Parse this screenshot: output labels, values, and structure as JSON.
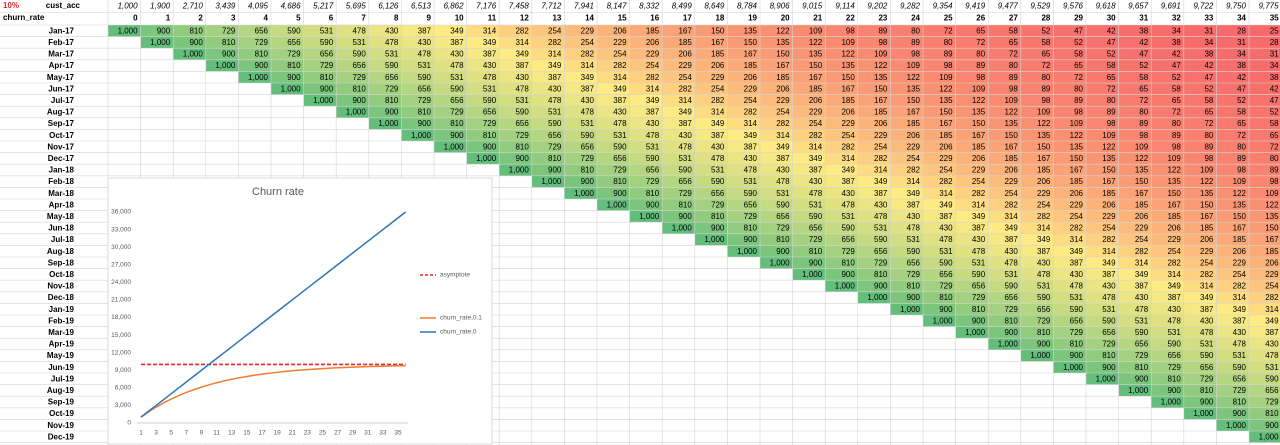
{
  "sheet": {
    "rate": "10%",
    "cust_acc_label": "cust_acc",
    "churn_rate_label": "churn_rate",
    "cust_acc": [
      "1,000",
      "1,900",
      "2,710",
      "3,439",
      "4,095",
      "4,686",
      "5,217",
      "5,695",
      "6,126",
      "6,513",
      "6,862",
      "7,176",
      "7,458",
      "7,712",
      "7,941",
      "8,147",
      "8,332",
      "8,499",
      "8,649",
      "8,784",
      "8,906",
      "9,015",
      "9,114",
      "9,202",
      "9,282",
      "9,354",
      "9,419",
      "9,477",
      "9,529",
      "9,576",
      "9,618",
      "9,657",
      "9,691",
      "9,722",
      "9,750",
      "9,775"
    ],
    "columns": [
      "0",
      "1",
      "2",
      "3",
      "4",
      "5",
      "6",
      "7",
      "8",
      "9",
      "10",
      "11",
      "12",
      "13",
      "14",
      "15",
      "16",
      "17",
      "18",
      "19",
      "20",
      "21",
      "22",
      "23",
      "24",
      "25",
      "26",
      "27",
      "28",
      "29",
      "30",
      "31",
      "32",
      "33",
      "34",
      "35"
    ],
    "rows": [
      {
        "label": "Jan-17",
        "values": [
          "1,000",
          "900",
          "810",
          "729",
          "656",
          "590",
          "531",
          "478",
          "430",
          "387",
          "349",
          "314",
          "282",
          "254",
          "229",
          "206",
          "185",
          "167",
          "150",
          "135",
          "122",
          "109",
          "98",
          "89",
          "80",
          "72",
          "65",
          "58",
          "52",
          "47",
          "42",
          "38",
          "34",
          "31",
          "28",
          "25"
        ]
      },
      {
        "label": "Feb-17",
        "values": [
          "1,000",
          "900",
          "810",
          "729",
          "656",
          "590",
          "531",
          "478",
          "430",
          "387",
          "349",
          "314",
          "282",
          "254",
          "229",
          "206",
          "185",
          "167",
          "150",
          "135",
          "122",
          "109",
          "98",
          "89",
          "80",
          "72",
          "65",
          "58",
          "52",
          "47",
          "42",
          "38",
          "34",
          "31",
          "28"
        ]
      },
      {
        "label": "Mar-17",
        "values": [
          "1,000",
          "900",
          "810",
          "729",
          "656",
          "590",
          "531",
          "478",
          "430",
          "387",
          "349",
          "314",
          "282",
          "254",
          "229",
          "206",
          "185",
          "167",
          "150",
          "135",
          "122",
          "109",
          "98",
          "89",
          "80",
          "72",
          "65",
          "58",
          "52",
          "47",
          "42",
          "38",
          "34",
          "31"
        ]
      },
      {
        "label": "Apr-17",
        "values": [
          "1,000",
          "900",
          "810",
          "729",
          "656",
          "590",
          "531",
          "478",
          "430",
          "387",
          "349",
          "314",
          "282",
          "254",
          "229",
          "206",
          "185",
          "167",
          "150",
          "135",
          "122",
          "109",
          "98",
          "89",
          "80",
          "72",
          "65",
          "58",
          "52",
          "47",
          "42",
          "38",
          "34"
        ]
      },
      {
        "label": "May-17",
        "values": [
          "1,000",
          "900",
          "810",
          "729",
          "656",
          "590",
          "531",
          "478",
          "430",
          "387",
          "349",
          "314",
          "282",
          "254",
          "229",
          "206",
          "185",
          "167",
          "150",
          "135",
          "122",
          "109",
          "98",
          "89",
          "80",
          "72",
          "65",
          "58",
          "52",
          "47",
          "42",
          "38"
        ]
      },
      {
        "label": "Jun-17",
        "values": [
          "1,000",
          "900",
          "810",
          "729",
          "656",
          "590",
          "531",
          "478",
          "430",
          "387",
          "349",
          "314",
          "282",
          "254",
          "229",
          "206",
          "185",
          "167",
          "150",
          "135",
          "122",
          "109",
          "98",
          "89",
          "80",
          "72",
          "65",
          "58",
          "52",
          "47",
          "42"
        ]
      },
      {
        "label": "Jul-17",
        "values": [
          "1,000",
          "900",
          "810",
          "729",
          "656",
          "590",
          "531",
          "478",
          "430",
          "387",
          "349",
          "314",
          "282",
          "254",
          "229",
          "206",
          "185",
          "167",
          "150",
          "135",
          "122",
          "109",
          "98",
          "89",
          "80",
          "72",
          "65",
          "58",
          "52",
          "47"
        ]
      },
      {
        "label": "Aug-17",
        "values": [
          "1,000",
          "900",
          "810",
          "729",
          "656",
          "590",
          "531",
          "478",
          "430",
          "387",
          "349",
          "314",
          "282",
          "254",
          "229",
          "206",
          "185",
          "167",
          "150",
          "135",
          "122",
          "109",
          "98",
          "89",
          "80",
          "72",
          "65",
          "58",
          "52"
        ]
      },
      {
        "label": "Sep-17",
        "values": [
          "1,000",
          "900",
          "810",
          "729",
          "656",
          "590",
          "531",
          "478",
          "430",
          "387",
          "349",
          "314",
          "282",
          "254",
          "229",
          "206",
          "185",
          "167",
          "150",
          "135",
          "122",
          "109",
          "98",
          "89",
          "80",
          "72",
          "65",
          "58"
        ]
      },
      {
        "label": "Oct-17",
        "values": [
          "1,000",
          "900",
          "810",
          "729",
          "656",
          "590",
          "531",
          "478",
          "430",
          "387",
          "349",
          "314",
          "282",
          "254",
          "229",
          "206",
          "185",
          "167",
          "150",
          "135",
          "122",
          "109",
          "98",
          "89",
          "80",
          "72",
          "65"
        ]
      },
      {
        "label": "Nov-17",
        "values": [
          "1,000",
          "900",
          "810",
          "729",
          "656",
          "590",
          "531",
          "478",
          "430",
          "387",
          "349",
          "314",
          "282",
          "254",
          "229",
          "206",
          "185",
          "167",
          "150",
          "135",
          "122",
          "109",
          "98",
          "89",
          "80",
          "72"
        ]
      },
      {
        "label": "Dec-17",
        "values": [
          "1,000",
          "900",
          "810",
          "729",
          "656",
          "590",
          "531",
          "478",
          "430",
          "387",
          "349",
          "314",
          "282",
          "254",
          "229",
          "206",
          "185",
          "167",
          "150",
          "135",
          "122",
          "109",
          "98",
          "89",
          "80"
        ]
      },
      {
        "label": "Jan-18",
        "values": [
          "1,000",
          "900",
          "810",
          "729",
          "656",
          "590",
          "531",
          "478",
          "430",
          "387",
          "349",
          "314",
          "282",
          "254",
          "229",
          "206",
          "185",
          "167",
          "150",
          "135",
          "122",
          "109",
          "98",
          "89"
        ]
      },
      {
        "label": "Feb-18",
        "values": [
          "1,000",
          "900",
          "810",
          "729",
          "656",
          "590",
          "531",
          "478",
          "430",
          "387",
          "349",
          "314",
          "282",
          "254",
          "229",
          "206",
          "185",
          "167",
          "150",
          "135",
          "122",
          "109",
          "98"
        ]
      },
      {
        "label": "Mar-18",
        "values": [
          "1,000",
          "900",
          "810",
          "729",
          "656",
          "590",
          "531",
          "478",
          "430",
          "387",
          "349",
          "314",
          "282",
          "254",
          "229",
          "206",
          "185",
          "167",
          "150",
          "135",
          "122",
          "109"
        ]
      },
      {
        "label": "Apr-18",
        "values": [
          "1,000",
          "900",
          "810",
          "729",
          "656",
          "590",
          "531",
          "478",
          "430",
          "387",
          "349",
          "314",
          "282",
          "254",
          "229",
          "206",
          "185",
          "167",
          "150",
          "135",
          "122"
        ]
      },
      {
        "label": "May-18",
        "values": [
          "1,000",
          "900",
          "810",
          "729",
          "656",
          "590",
          "531",
          "478",
          "430",
          "387",
          "349",
          "314",
          "282",
          "254",
          "229",
          "206",
          "185",
          "167",
          "150",
          "135"
        ]
      },
      {
        "label": "Jun-18",
        "values": [
          "1,000",
          "900",
          "810",
          "729",
          "656",
          "590",
          "531",
          "478",
          "430",
          "387",
          "349",
          "314",
          "282",
          "254",
          "229",
          "206",
          "185",
          "167",
          "150"
        ]
      },
      {
        "label": "Jul-18",
        "values": [
          "1,000",
          "900",
          "810",
          "729",
          "656",
          "590",
          "531",
          "478",
          "430",
          "387",
          "349",
          "314",
          "282",
          "254",
          "229",
          "206",
          "185",
          "167"
        ]
      },
      {
        "label": "Aug-18",
        "values": [
          "1,000",
          "900",
          "810",
          "729",
          "656",
          "590",
          "531",
          "478",
          "430",
          "387",
          "349",
          "314",
          "282",
          "254",
          "229",
          "206",
          "185"
        ]
      },
      {
        "label": "Sep-18",
        "values": [
          "1,000",
          "900",
          "810",
          "729",
          "656",
          "590",
          "531",
          "478",
          "430",
          "387",
          "349",
          "314",
          "282",
          "254",
          "229",
          "206"
        ]
      },
      {
        "label": "Oct-18",
        "values": [
          "1,000",
          "900",
          "810",
          "729",
          "656",
          "590",
          "531",
          "478",
          "430",
          "387",
          "349",
          "314",
          "282",
          "254",
          "229"
        ]
      },
      {
        "label": "Nov-18",
        "values": [
          "1,000",
          "900",
          "810",
          "729",
          "656",
          "590",
          "531",
          "478",
          "430",
          "387",
          "349",
          "314",
          "282",
          "254"
        ]
      },
      {
        "label": "Dec-18",
        "values": [
          "1,000",
          "900",
          "810",
          "729",
          "656",
          "590",
          "531",
          "478",
          "430",
          "387",
          "349",
          "314",
          "282"
        ]
      },
      {
        "label": "Jan-19",
        "values": [
          "1,000",
          "900",
          "810",
          "729",
          "656",
          "590",
          "531",
          "478",
          "430",
          "387",
          "349",
          "314"
        ]
      },
      {
        "label": "Feb-19",
        "values": [
          "1,000",
          "900",
          "810",
          "729",
          "656",
          "590",
          "531",
          "478",
          "430",
          "387",
          "349"
        ]
      },
      {
        "label": "Mar-19",
        "values": [
          "1,000",
          "900",
          "810",
          "729",
          "656",
          "590",
          "531",
          "478",
          "430",
          "387"
        ]
      },
      {
        "label": "Apr-19",
        "values": [
          "1,000",
          "900",
          "810",
          "729",
          "656",
          "590",
          "531",
          "478",
          "430"
        ]
      },
      {
        "label": "May-19",
        "values": [
          "1,000",
          "900",
          "810",
          "729",
          "656",
          "590",
          "531",
          "478"
        ]
      },
      {
        "label": "Jun-19",
        "values": [
          "1,000",
          "900",
          "810",
          "729",
          "656",
          "590",
          "531"
        ]
      },
      {
        "label": "Jul-19",
        "values": [
          "1,000",
          "900",
          "810",
          "729",
          "656",
          "590"
        ]
      },
      {
        "label": "Aug-19",
        "values": [
          "1,000",
          "900",
          "810",
          "729",
          "656"
        ]
      },
      {
        "label": "Sep-19",
        "values": [
          "1,000",
          "900",
          "810",
          "729"
        ]
      },
      {
        "label": "Oct-19",
        "values": [
          "1,000",
          "900",
          "810"
        ]
      },
      {
        "label": "Nov-19",
        "values": [
          "1,000",
          "900"
        ]
      },
      {
        "label": "Dec-19",
        "values": [
          "1,000"
        ]
      }
    ]
  },
  "chart_data": {
    "type": "line",
    "title": "Churn rate",
    "categories": [
      1,
      null,
      3,
      null,
      5,
      null,
      7,
      null,
      9,
      null,
      11,
      null,
      13,
      null,
      15,
      null,
      17,
      null,
      19,
      null,
      21,
      null,
      23,
      null,
      25,
      null,
      27,
      null,
      29,
      null,
      31,
      null,
      33,
      null,
      35,
      null
    ],
    "ylim": [
      0,
      36000
    ],
    "yticks": [
      0,
      {
        "value": 3000,
        "label": "3,000"
      },
      {
        "value": 6000,
        "label": "6,000"
      },
      {
        "value": 9000,
        "label": "9,000"
      },
      {
        "value": 12000,
        "label": "12,000"
      },
      {
        "value": 15000,
        "label": "15,000"
      },
      {
        "value": 18000,
        "label": "18,000"
      },
      {
        "value": 21000,
        "label": "21,000"
      },
      {
        "value": 24000,
        "label": "24,000"
      },
      {
        "value": 27000,
        "label": "27,000"
      },
      {
        "value": 30000,
        "label": "30,000"
      },
      {
        "value": 33000,
        "label": "33,000"
      },
      {
        "value": 36000,
        "label": "36,000"
      }
    ],
    "grid": false,
    "legend": "right",
    "series": [
      {
        "name": "asymptote",
        "color": "#e8262a",
        "dashed": true,
        "values": [
          10000,
          10000,
          10000,
          10000,
          10000,
          10000,
          10000,
          10000,
          10000,
          10000,
          10000,
          10000,
          10000,
          10000,
          10000,
          10000,
          10000,
          10000,
          10000,
          10000,
          10000,
          10000,
          10000,
          10000,
          10000,
          10000,
          10000,
          10000,
          10000,
          10000,
          10000,
          10000,
          10000,
          10000,
          10000,
          10000
        ]
      },
      {
        "name": "churn_rate,0.1",
        "color": "#ed7d31",
        "dashed": false,
        "values": [
          1000,
          1900,
          2710,
          3439,
          4095,
          4686,
          5217,
          5695,
          6126,
          6513,
          6862,
          7176,
          7458,
          7712,
          7941,
          8147,
          8332,
          8499,
          8649,
          8784,
          8906,
          9015,
          9114,
          9202,
          9282,
          9354,
          9419,
          9477,
          9529,
          9576,
          9618,
          9657,
          9691,
          9722,
          9750,
          9775
        ]
      },
      {
        "name": "churn_rate,0",
        "color": "#2e75b6",
        "dashed": false,
        "values": [
          1000,
          2000,
          3000,
          4000,
          5000,
          6000,
          7000,
          8000,
          9000,
          10000,
          11000,
          12000,
          13000,
          14000,
          15000,
          16000,
          17000,
          18000,
          19000,
          20000,
          21000,
          22000,
          23000,
          24000,
          25000,
          26000,
          27000,
          28000,
          29000,
          30000,
          31000,
          32000,
          33000,
          34000,
          35000,
          36000
        ]
      }
    ]
  }
}
